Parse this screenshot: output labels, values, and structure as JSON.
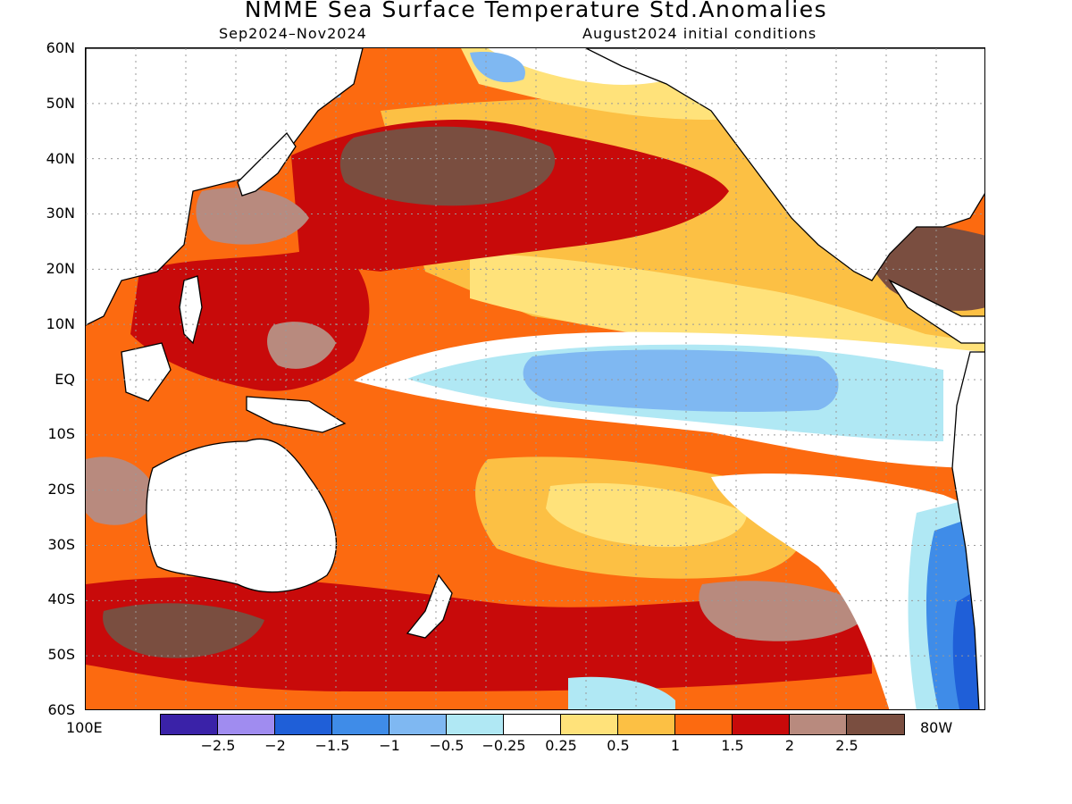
{
  "title": "NMME Sea Surface Temperature Std.Anomalies",
  "subtitle_left": "Sep2024–Nov2024",
  "subtitle_right": "August2024 initial conditions",
  "lat_labels": [
    "60N",
    "50N",
    "40N",
    "30N",
    "20N",
    "10N",
    "EQ",
    "10S",
    "20S",
    "30S",
    "40S",
    "50S",
    "60S"
  ],
  "lon_labels": {
    "west": "100E",
    "east": "80W"
  },
  "colorbar": {
    "colors": [
      "#3a22a8",
      "#a08cf0",
      "#1f5fd8",
      "#3f8ce8",
      "#7fb8f2",
      "#b0e8f4",
      "#ffffff",
      "#ffe27a",
      "#fcc044",
      "#fc6a10",
      "#c80a0a",
      "#b88a7e",
      "#7a4e40"
    ],
    "labels": [
      "−2.5",
      "−2",
      "−1.5",
      "−1",
      "−0.5",
      "−0.25",
      "0.25",
      "0.5",
      "1",
      "1.5",
      "2",
      "2.5"
    ]
  },
  "map_colors": {
    "land": "#ffffff",
    "coast": "#000000",
    "grid": "#999999",
    "ocean_base": "#fc6a10"
  }
}
